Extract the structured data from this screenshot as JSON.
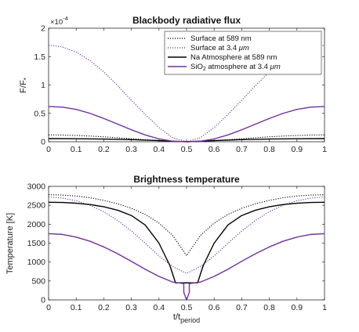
{
  "chart_data": [
    {
      "type": "line",
      "title": "Blackbody radiative flux",
      "xlabel": "",
      "ylabel": "F/F",
      "ylabel_subscript": "*",
      "y_scale_label": "×10",
      "y_scale_exponent": "-4",
      "xlim": [
        0,
        1
      ],
      "ylim": [
        0,
        2
      ],
      "xticks": [
        "0",
        "0.1",
        "0.2",
        "0.3",
        "0.4",
        "0.5",
        "0.6",
        "0.7",
        "0.8",
        "0.9",
        "1"
      ],
      "yticks": [
        "0",
        "0.5",
        "1",
        "1.5",
        "2"
      ],
      "legend_position": "top-right",
      "legend": [
        {
          "text": "Surface at 589 nm"
        },
        {
          "text": "Surface at 3.4 ",
          "unit": "μm"
        },
        {
          "text": "Na Atmosphere at 589 nm"
        },
        {
          "text": "SiO",
          "sub": "2",
          "rest": " atmosphere at 3.4 ",
          "unit": "μm"
        }
      ],
      "series": [
        {
          "color": "#000000",
          "dash": "dotted",
          "x": [
            0,
            0.05,
            0.1,
            0.15,
            0.2,
            0.25,
            0.3,
            0.35,
            0.4,
            0.45,
            0.5,
            0.55,
            0.6,
            0.65,
            0.7,
            0.75,
            0.8,
            0.85,
            0.9,
            0.95,
            1
          ],
          "y": [
            0.12,
            0.118,
            0.11,
            0.1,
            0.086,
            0.07,
            0.053,
            0.036,
            0.02,
            0.007,
            0.0,
            0.007,
            0.02,
            0.036,
            0.053,
            0.07,
            0.086,
            0.1,
            0.11,
            0.118,
            0.12
          ]
        },
        {
          "color": "#7030a0",
          "dash": "dotted",
          "x": [
            0,
            0.05,
            0.1,
            0.15,
            0.2,
            0.25,
            0.3,
            0.35,
            0.4,
            0.45,
            0.5,
            0.55,
            0.6,
            0.65,
            0.7,
            0.75,
            0.8,
            0.85,
            0.9,
            0.95,
            1
          ],
          "y": [
            1.7,
            1.67,
            1.58,
            1.43,
            1.23,
            0.99,
            0.73,
            0.48,
            0.25,
            0.07,
            0.0,
            0.07,
            0.25,
            0.48,
            0.73,
            0.99,
            1.23,
            1.43,
            1.58,
            1.67,
            1.7
          ]
        },
        {
          "color": "#000000",
          "dash": "solid",
          "x": [
            0,
            0.1,
            0.2,
            0.3,
            0.4,
            0.45,
            0.5,
            0.55,
            0.6,
            0.7,
            0.8,
            0.9,
            1
          ],
          "y": [
            0.055,
            0.053,
            0.047,
            0.037,
            0.02,
            0.009,
            0.0,
            0.009,
            0.02,
            0.037,
            0.047,
            0.053,
            0.055
          ]
        },
        {
          "color": "#7030a0",
          "dash": "solid",
          "x": [
            0,
            0.05,
            0.1,
            0.15,
            0.2,
            0.25,
            0.3,
            0.35,
            0.4,
            0.45,
            0.5,
            0.55,
            0.6,
            0.65,
            0.7,
            0.75,
            0.8,
            0.85,
            0.9,
            0.95,
            1
          ],
          "y": [
            0.62,
            0.61,
            0.57,
            0.5,
            0.41,
            0.31,
            0.21,
            0.12,
            0.05,
            0.01,
            0.0,
            0.01,
            0.05,
            0.12,
            0.21,
            0.31,
            0.41,
            0.5,
            0.57,
            0.61,
            0.62
          ]
        }
      ]
    },
    {
      "type": "line",
      "title": "Brightness temperature",
      "xlabel": "t/t",
      "xlabel_subscript": "period",
      "ylabel": "Temperature [K]",
      "xlim": [
        0,
        1
      ],
      "ylim": [
        0,
        3000
      ],
      "xticks": [
        "0",
        "0.1",
        "0.2",
        "0.3",
        "0.4",
        "0.5",
        "0.6",
        "0.7",
        "0.8",
        "0.9",
        "1"
      ],
      "yticks": [
        "0",
        "500",
        "1000",
        "1500",
        "2000",
        "2500",
        "3000"
      ],
      "series": [
        {
          "color": "#000000",
          "dash": "dotted",
          "x": [
            0,
            0.05,
            0.1,
            0.15,
            0.2,
            0.25,
            0.3,
            0.35,
            0.4,
            0.45,
            0.5,
            0.55,
            0.6,
            0.65,
            0.7,
            0.75,
            0.8,
            0.85,
            0.9,
            0.95,
            1
          ],
          "y": [
            2780,
            2770,
            2745,
            2700,
            2630,
            2540,
            2420,
            2260,
            2030,
            1700,
            1170,
            1700,
            2030,
            2260,
            2420,
            2540,
            2630,
            2700,
            2745,
            2770,
            2780
          ]
        },
        {
          "color": "#7030a0",
          "dash": "dotted",
          "x": [
            0,
            0.05,
            0.1,
            0.15,
            0.2,
            0.25,
            0.3,
            0.35,
            0.4,
            0.45,
            0.5,
            0.55,
            0.6,
            0.65,
            0.7,
            0.75,
            0.8,
            0.85,
            0.9,
            0.95,
            1
          ],
          "y": [
            2720,
            2690,
            2620,
            2500,
            2330,
            2100,
            1820,
            1500,
            1160,
            880,
            700,
            880,
            1160,
            1500,
            1820,
            2100,
            2330,
            2500,
            2620,
            2690,
            2720
          ]
        },
        {
          "color": "#000000",
          "dash": "solid",
          "x": [
            0,
            0.05,
            0.1,
            0.15,
            0.2,
            0.25,
            0.3,
            0.35,
            0.4,
            0.44,
            0.46,
            0.5,
            0.54,
            0.56,
            0.6,
            0.65,
            0.7,
            0.75,
            0.8,
            0.85,
            0.9,
            0.95,
            1
          ],
          "y": [
            2580,
            2575,
            2555,
            2520,
            2460,
            2370,
            2230,
            1980,
            1500,
            900,
            450,
            450,
            450,
            900,
            1500,
            1980,
            2230,
            2370,
            2460,
            2520,
            2555,
            2575,
            2580
          ]
        },
        {
          "color": "#7030a0",
          "dash": "solid",
          "x": [
            0,
            0.05,
            0.1,
            0.15,
            0.2,
            0.25,
            0.3,
            0.35,
            0.4,
            0.45,
            0.49,
            0.49,
            0.5,
            0.51,
            0.51,
            0.55,
            0.6,
            0.65,
            0.7,
            0.75,
            0.8,
            0.85,
            0.9,
            0.95,
            1
          ],
          "y": [
            1750,
            1730,
            1660,
            1550,
            1400,
            1220,
            1020,
            810,
            620,
            470,
            430,
            200,
            0,
            200,
            430,
            470,
            620,
            810,
            1020,
            1220,
            1400,
            1550,
            1660,
            1730,
            1750
          ]
        }
      ]
    }
  ]
}
